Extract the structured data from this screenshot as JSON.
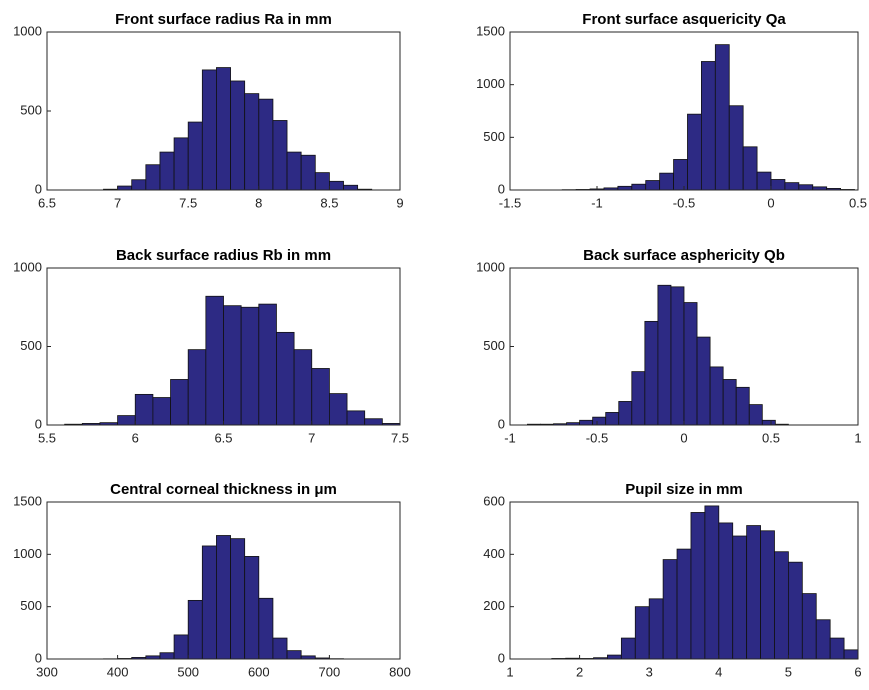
{
  "chart_data": [
    {
      "type": "histogram",
      "title": "Front surface radius Ra in mm",
      "color": "#2d2a84",
      "bins": [
        6.9,
        7.0,
        7.1,
        7.2,
        7.3,
        7.4,
        7.5,
        7.6,
        7.7,
        7.8,
        7.9,
        8.0,
        8.1,
        8.2,
        8.3,
        8.4,
        8.5,
        8.6,
        8.7,
        8.8
      ],
      "values": [
        5,
        25,
        65,
        160,
        240,
        330,
        430,
        760,
        775,
        690,
        610,
        575,
        440,
        240,
        220,
        110,
        55,
        30,
        5
      ],
      "xlim": [
        6.5,
        9
      ],
      "xticks": [
        6.5,
        7,
        7.5,
        8,
        8.5,
        9
      ],
      "ylim": [
        0,
        1000
      ],
      "yticks": [
        0,
        500,
        1000
      ]
    },
    {
      "type": "histogram",
      "title": "Front surface asquericity Qa",
      "color": "#2d2a84",
      "bins": [
        -1.2,
        -1.12,
        -1.04,
        -0.96,
        -0.88,
        -0.8,
        -0.72,
        -0.64,
        -0.56,
        -0.48,
        -0.4,
        -0.32,
        -0.24,
        -0.16,
        -0.08,
        0,
        0.08,
        0.16,
        0.24,
        0.32,
        0.4,
        0.48
      ],
      "values": [
        3,
        5,
        10,
        20,
        35,
        55,
        90,
        160,
        290,
        720,
        1220,
        1380,
        800,
        410,
        170,
        100,
        70,
        50,
        30,
        15,
        5
      ],
      "xlim": [
        -1.5,
        0.5
      ],
      "xticks": [
        -1.5,
        -1,
        -0.5,
        0,
        0.5
      ],
      "ylim": [
        0,
        1500
      ],
      "yticks": [
        0,
        500,
        1000,
        1500
      ]
    },
    {
      "type": "histogram",
      "title": "Back surface radius Rb in mm",
      "color": "#2d2a84",
      "bins": [
        5.6,
        5.7,
        5.8,
        5.9,
        6.0,
        6.1,
        6.2,
        6.3,
        6.4,
        6.5,
        6.6,
        6.7,
        6.8,
        6.9,
        7.0,
        7.1,
        7.2,
        7.3,
        7.4,
        7.5
      ],
      "values": [
        5,
        10,
        15,
        60,
        195,
        175,
        290,
        480,
        820,
        760,
        750,
        770,
        590,
        480,
        360,
        200,
        90,
        40,
        10
      ],
      "xlim": [
        5.5,
        7.5
      ],
      "xticks": [
        5.5,
        6,
        6.5,
        7,
        7.5
      ],
      "ylim": [
        0,
        1000
      ],
      "yticks": [
        0,
        500,
        1000
      ]
    },
    {
      "type": "histogram",
      "title": "Back surface asphericity Qb",
      "color": "#2d2a84",
      "bins": [
        -0.9,
        -0.825,
        -0.75,
        -0.675,
        -0.6,
        -0.525,
        -0.45,
        -0.375,
        -0.3,
        -0.225,
        -0.15,
        -0.075,
        0,
        0.075,
        0.15,
        0.225,
        0.3,
        0.375,
        0.45,
        0.525,
        0.6
      ],
      "values": [
        5,
        5,
        8,
        15,
        30,
        50,
        80,
        150,
        340,
        660,
        890,
        880,
        780,
        560,
        370,
        290,
        240,
        130,
        30,
        5
      ],
      "xlim": [
        -1,
        1
      ],
      "xticks": [
        -1,
        -0.5,
        0,
        0.5,
        1
      ],
      "ylim": [
        0,
        1000
      ],
      "yticks": [
        0,
        500,
        1000
      ]
    },
    {
      "type": "histogram",
      "title": "Central corneal thickness in μm",
      "color": "#2d2a84",
      "bins": [
        380,
        400,
        420,
        440,
        460,
        480,
        500,
        520,
        540,
        560,
        580,
        600,
        620,
        640,
        660,
        680,
        700,
        720
      ],
      "values": [
        2,
        5,
        15,
        30,
        60,
        230,
        560,
        1080,
        1180,
        1150,
        980,
        580,
        200,
        80,
        30,
        10,
        3
      ],
      "xlim": [
        300,
        800
      ],
      "xticks": [
        300,
        400,
        500,
        600,
        700,
        800
      ],
      "ylim": [
        0,
        1500
      ],
      "yticks": [
        0,
        500,
        1000,
        1500
      ]
    },
    {
      "type": "histogram",
      "title": "Pupil size in mm",
      "color": "#2d2a84",
      "bins": [
        1.6,
        1.8,
        2.0,
        2.2,
        2.4,
        2.6,
        2.8,
        3.0,
        3.2,
        3.4,
        3.6,
        3.8,
        4.0,
        4.2,
        4.4,
        4.6,
        4.8,
        5.0,
        5.2,
        5.4,
        5.6,
        5.8,
        6.0
      ],
      "values": [
        2,
        3,
        2,
        5,
        15,
        80,
        200,
        230,
        380,
        420,
        560,
        585,
        520,
        470,
        510,
        490,
        410,
        370,
        250,
        150,
        80,
        35
      ],
      "xlim": [
        1,
        6
      ],
      "xticks": [
        1,
        2,
        3,
        4,
        5,
        6
      ],
      "ylim": [
        0,
        600
      ],
      "yticks": [
        0,
        200,
        400,
        600
      ]
    }
  ]
}
